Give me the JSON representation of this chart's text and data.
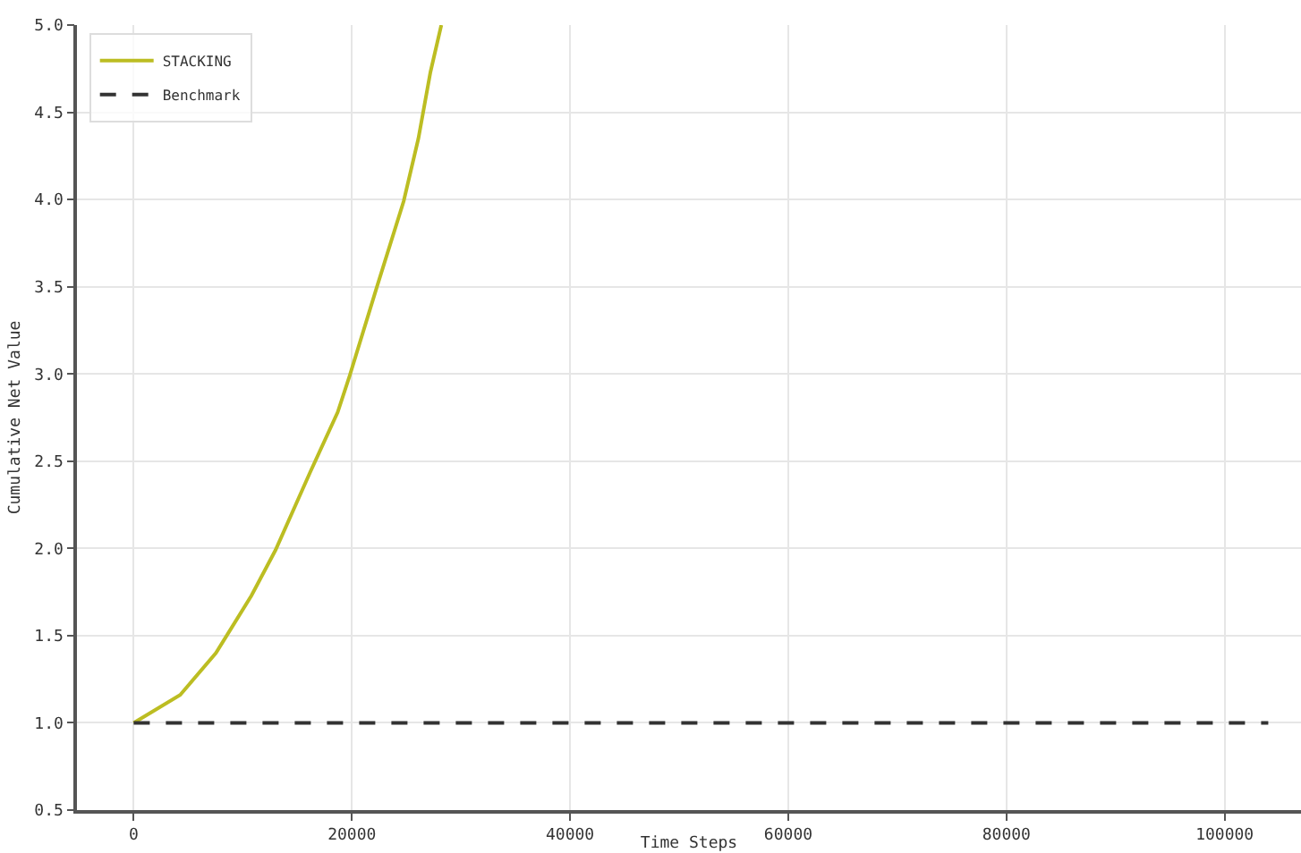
{
  "chart_data": {
    "type": "line",
    "xlabel": "Time Steps",
    "ylabel": "Cumulative Net Value",
    "xlim": [
      -5200,
      107000
    ],
    "xticks": [
      0,
      20000,
      40000,
      60000,
      80000,
      100000
    ],
    "ylim": [
      0.5,
      5.0
    ],
    "yticks": [
      {
        "value": 0.5,
        "label": "0.5"
      },
      {
        "value": 1,
        "label": "1.0"
      },
      {
        "value": 1.5,
        "label": "1.5"
      },
      {
        "value": 2,
        "label": "2.0"
      },
      {
        "value": 2.5,
        "label": "2.5"
      },
      {
        "value": 3,
        "label": "3.0"
      },
      {
        "value": 3.5,
        "label": "3.5"
      },
      {
        "value": 4,
        "label": "4.0"
      },
      {
        "value": 4.5,
        "label": "4.5"
      },
      {
        "value": 5,
        "label": "5.0"
      }
    ],
    "grid": true,
    "legend": "top left",
    "marker": "none",
    "series": [
      {
        "name": "STACKING",
        "color": "#bcbd22",
        "line_style": "solid",
        "x": [
          0,
          4260,
          7540,
          10800,
          13000,
          16200,
          18700,
          19800,
          22300,
          24750,
          26100,
          27200,
          28200
        ],
        "values": [
          1.0,
          1.16,
          1.4,
          1.73,
          1.99,
          2.44,
          2.78,
          2.99,
          3.5,
          3.99,
          4.35,
          4.73,
          5.0
        ]
      },
      {
        "name": "Benchmark",
        "color": "#333333",
        "line_style": "dashed",
        "x": [
          0,
          104000
        ],
        "values": [
          1.0,
          1.0
        ]
      }
    ]
  }
}
